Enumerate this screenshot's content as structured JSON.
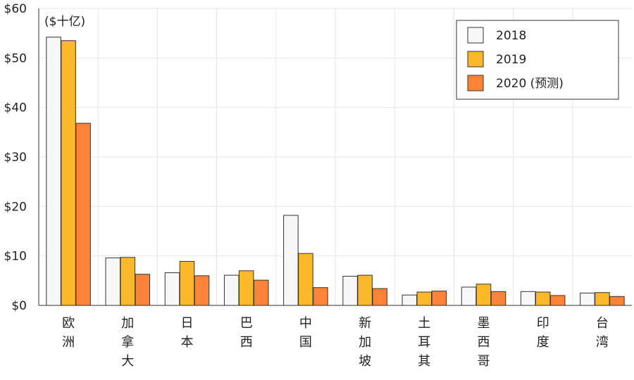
{
  "chart_data": {
    "type": "bar",
    "unit_label": "($十亿)",
    "categories": [
      "欧洲",
      "加拿大",
      "日本",
      "巴西",
      "中国",
      "新加坡",
      "土耳其",
      "墨西哥",
      "印度",
      "台湾"
    ],
    "series": [
      {
        "name": "2018",
        "color": "#f7f7f7",
        "values": [
          54.2,
          9.6,
          6.6,
          6.1,
          18.2,
          5.9,
          2.1,
          3.7,
          2.8,
          2.5
        ]
      },
      {
        "name": "2019",
        "color": "#fbb829",
        "values": [
          53.5,
          9.7,
          8.9,
          7.0,
          10.5,
          6.1,
          2.7,
          4.3,
          2.7,
          2.6
        ]
      },
      {
        "name": "2020 (预测)",
        "color": "#fd8436",
        "values": [
          36.8,
          6.3,
          6.0,
          5.1,
          3.6,
          3.4,
          2.9,
          2.8,
          2.0,
          1.8
        ]
      }
    ],
    "y_ticks": [
      "$0",
      "$10",
      "$20",
      "$30",
      "$40",
      "$50",
      "$60"
    ],
    "ylim": [
      0,
      60
    ],
    "grid": true,
    "legend_position": "top-right"
  }
}
